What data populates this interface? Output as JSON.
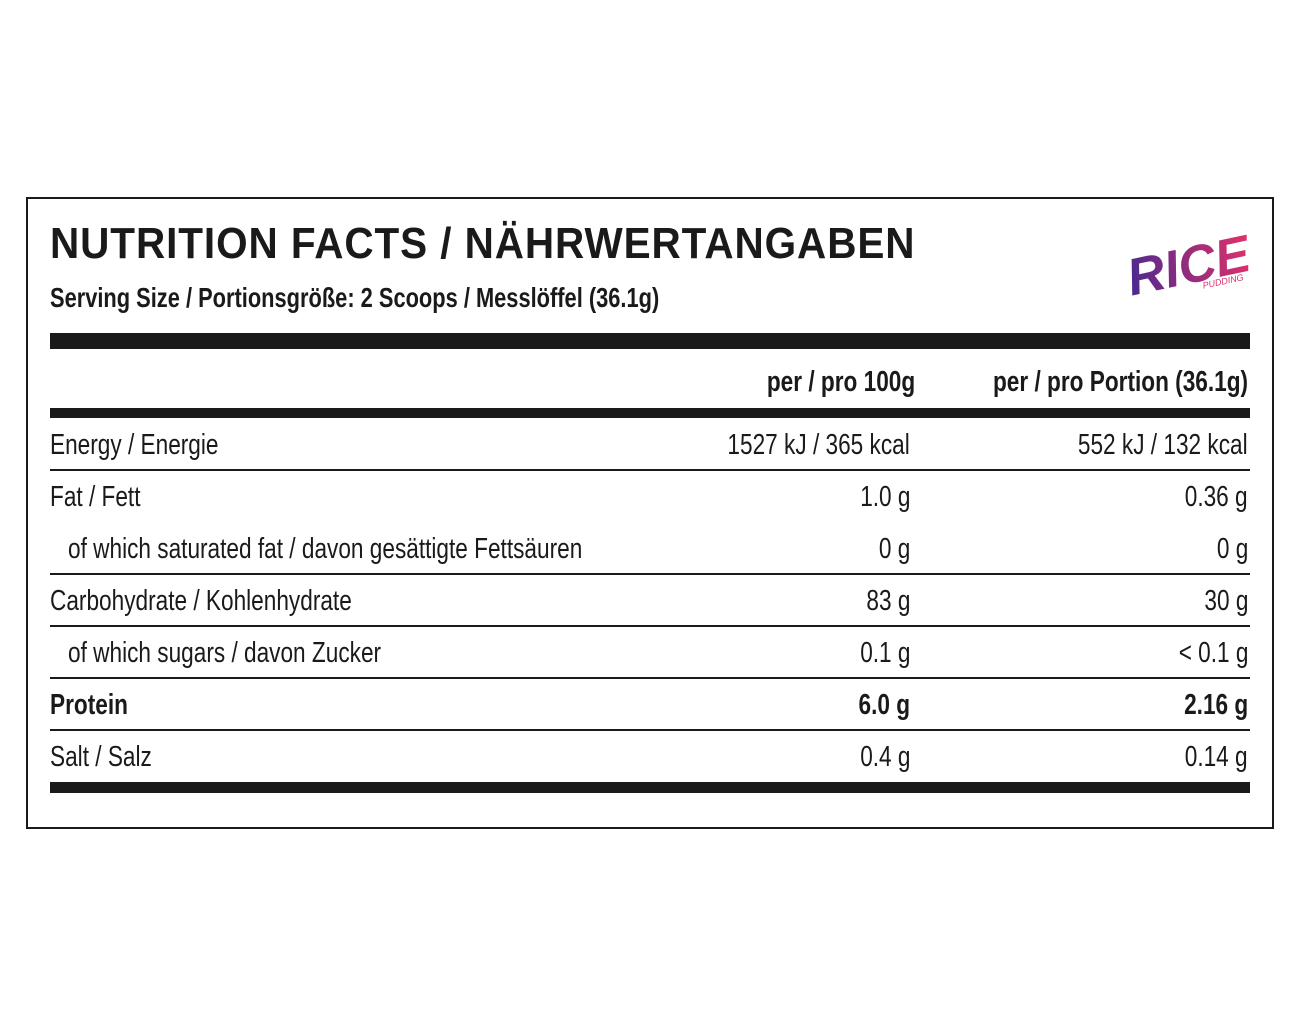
{
  "header": {
    "title": "NUTRITION FACTS / NÄHRWERTANGABEN",
    "serving": "Serving Size / Portionsgröße: 2 Scoops / Messlöffel (36.1g)",
    "logo": {
      "word": "RICE",
      "sub": "PUDDING"
    }
  },
  "table": {
    "columns": [
      "per / pro 100g",
      "per / pro Portion (36.1g)"
    ],
    "rows": [
      [
        "Energy / Energie",
        "1527 kJ / 365 kcal",
        "552 kJ / 132 kcal"
      ],
      [
        "Fat / Fett",
        "1.0 g",
        "0.36 g"
      ],
      [
        "of which saturated fat / davon gesättigte Fettsäuren",
        "0 g",
        "0 g"
      ],
      [
        "Carbohydrate / Kohlenhydrate",
        "83 g",
        "30 g"
      ],
      [
        "of which sugars / davon Zucker",
        "0.1 g",
        "< 0.1 g"
      ],
      [
        "Protein",
        "6.0 g",
        "2.16 g"
      ],
      [
        "Salt / Salz",
        "0.4 g",
        "0.14 g"
      ]
    ]
  }
}
